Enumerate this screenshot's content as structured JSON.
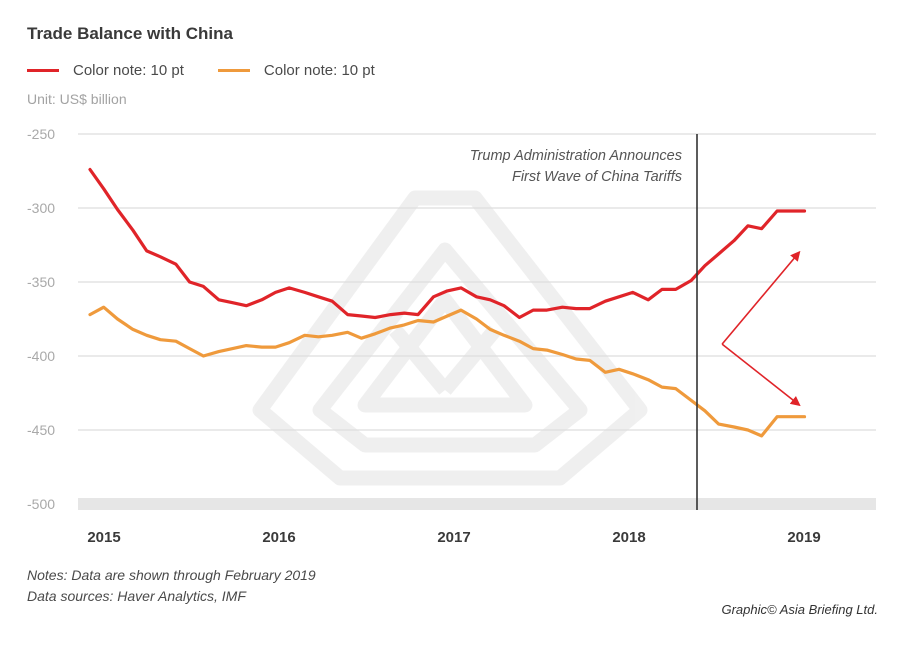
{
  "title": "Trade Balance with China",
  "unit": "Unit: US$ billion",
  "legend": [
    {
      "label": "Color note: 10 pt",
      "color": "#e02429"
    },
    {
      "label": "Color note: 10 pt",
      "color": "#ef9a3c"
    }
  ],
  "chart_data": {
    "type": "line",
    "title": "Trade Balance with China",
    "ylabel": "Unit: US$ billion",
    "xlabel": "",
    "ylim": [
      -500,
      -250
    ],
    "yticks": [
      -250,
      -300,
      -350,
      -400,
      -450,
      -500
    ],
    "ytick_labels": [
      "-250",
      "-300",
      "-350",
      "-400",
      "-450",
      "-500"
    ],
    "xlim": [
      2014.92,
      2019.25
    ],
    "xticks": [
      2015,
      2016,
      2017,
      2018,
      2019
    ],
    "xtick_labels": [
      "2015",
      "2016",
      "2017",
      "2018",
      "2019"
    ],
    "grid": true,
    "series": [
      {
        "name": "Color note: 10 pt",
        "color": "#e02429",
        "x": [
          2014.92,
          2015.0,
          2015.08,
          2015.17,
          2015.25,
          2015.33,
          2015.42,
          2015.5,
          2015.58,
          2015.67,
          2015.75,
          2015.83,
          2015.92,
          2016.0,
          2016.08,
          2016.17,
          2016.25,
          2016.33,
          2016.42,
          2016.5,
          2016.58,
          2016.67,
          2016.75,
          2016.83,
          2016.92,
          2017.0,
          2017.08,
          2017.17,
          2017.25,
          2017.33,
          2017.42,
          2017.5,
          2017.58,
          2017.67,
          2017.75,
          2017.83,
          2017.92,
          2018.0,
          2018.08,
          2018.17,
          2018.25,
          2018.33,
          2018.42,
          2018.5,
          2018.58,
          2018.67,
          2018.75,
          2018.83,
          2018.92,
          2019.0,
          2019.08,
          2019.17
        ],
        "values": [
          -274,
          -287,
          -301,
          -315,
          -329,
          -333,
          -338,
          -350,
          -353,
          -362,
          -364,
          -366,
          -362,
          -357,
          -354,
          -357,
          -360,
          -363,
          -372,
          -373,
          -374,
          -372,
          -371,
          -372,
          -360,
          -356,
          -354,
          -360,
          -362,
          -366,
          -374,
          -369,
          -369,
          -367,
          -368,
          -368,
          -363,
          -360,
          -357,
          -362,
          -355,
          -355,
          -349,
          -339,
          -331,
          -322,
          -312,
          -314,
          -302,
          -302,
          -302,
          -302
        ]
      },
      {
        "name": "Color note: 10 pt",
        "color": "#ef9a3c",
        "x": [
          2014.92,
          2015.0,
          2015.08,
          2015.17,
          2015.25,
          2015.33,
          2015.42,
          2015.5,
          2015.58,
          2015.67,
          2015.75,
          2015.83,
          2015.92,
          2016.0,
          2016.08,
          2016.17,
          2016.25,
          2016.33,
          2016.42,
          2016.5,
          2016.58,
          2016.67,
          2016.75,
          2016.83,
          2016.92,
          2017.0,
          2017.08,
          2017.17,
          2017.25,
          2017.33,
          2017.42,
          2017.5,
          2017.58,
          2017.67,
          2017.75,
          2017.83,
          2017.92,
          2018.0,
          2018.08,
          2018.17,
          2018.25,
          2018.33,
          2018.42,
          2018.5,
          2018.58,
          2018.67,
          2018.75,
          2018.83,
          2018.92,
          2019.0,
          2019.08,
          2019.17
        ],
        "values": [
          -372,
          -367,
          -375,
          -382,
          -386,
          -389,
          -390,
          -395,
          -400,
          -397,
          -395,
          -393,
          -394,
          -394,
          -391,
          -386,
          -387,
          -386,
          -384,
          -388,
          -385,
          -381,
          -379,
          -376,
          -377,
          -373,
          -369,
          -375,
          -382,
          -386,
          -390,
          -395,
          -396,
          -399,
          -402,
          -403,
          -411,
          -409,
          -412,
          -416,
          -421,
          -422,
          -430,
          -437,
          -446,
          -448,
          -450,
          -454,
          -441,
          -441,
          -441,
          -441
        ]
      }
    ],
    "annotations": [
      {
        "text_lines": [
          "Trump Administration Announces",
          "First Wave of China Tariffs"
        ],
        "x": 2018.38,
        "type": "vertical-line"
      },
      {
        "type": "arrows",
        "from": [
          2018.6,
          -392
        ],
        "to": [
          [
            2019.06,
            -330
          ],
          [
            2019.06,
            -433
          ]
        ]
      }
    ]
  },
  "notes": [
    "Notes: Data are shown through February 2019",
    "Data sources: Haver Analytics, IMF"
  ],
  "credit": "Graphic© Asia Briefing Ltd."
}
